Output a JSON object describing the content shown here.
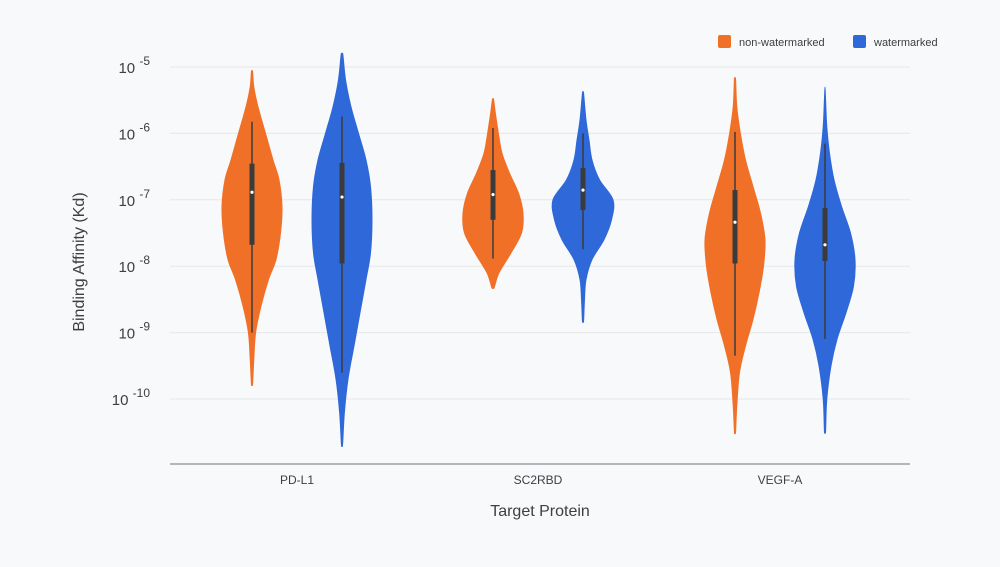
{
  "chart_data": {
    "type": "violin",
    "title": "",
    "xlabel": "Target Protein",
    "ylabel": "Binding Affinity (Kd)",
    "y_scale": "log10",
    "ylim": [
      1e-11,
      2e-05
    ],
    "y_ticks": [
      {
        "value": 1e-05,
        "base": "10",
        "exp": "-5"
      },
      {
        "value": 1e-06,
        "base": "10",
        "exp": "-6"
      },
      {
        "value": 1e-07,
        "base": "10",
        "exp": "-7"
      },
      {
        "value": 1e-08,
        "base": "10",
        "exp": "-8"
      },
      {
        "value": 1e-09,
        "base": "10",
        "exp": "-9"
      },
      {
        "value": 1e-10,
        "base": "10",
        "exp": "-10"
      }
    ],
    "categories": [
      "PD-L1",
      "SC2RBD",
      "VEGF-A"
    ],
    "grid": true,
    "legend_position": "top-right",
    "series": [
      {
        "name": "non-watermarked",
        "color": "#f07028",
        "violins": [
          {
            "min": 1.7e-10,
            "max": 8.5e-06,
            "q1": 2.1e-08,
            "median": 1.3e-07,
            "q3": 3.5e-07,
            "whisker_low": 1e-09,
            "whisker_high": 1.5e-06,
            "density": [
              [
                -9.77,
                0.02
              ],
              [
                -9.4,
                0.06
              ],
              [
                -9.0,
                0.12
              ],
              [
                -8.6,
                0.3
              ],
              [
                -8.2,
                0.55
              ],
              [
                -7.9,
                0.8
              ],
              [
                -7.5,
                0.95
              ],
              [
                -7.1,
                1.0
              ],
              [
                -6.7,
                0.9
              ],
              [
                -6.4,
                0.7
              ],
              [
                -6.0,
                0.45
              ],
              [
                -5.6,
                0.2
              ],
              [
                -5.3,
                0.06
              ],
              [
                -5.07,
                0.02
              ]
            ]
          },
          {
            "min": 4.8e-09,
            "max": 3.2e-06,
            "q1": 5e-08,
            "median": 1.2e-07,
            "q3": 2.8e-07,
            "whisker_low": 1.3e-08,
            "whisker_high": 1.2e-06,
            "density": [
              [
                -8.32,
                0.04
              ],
              [
                -8.1,
                0.2
              ],
              [
                -7.8,
                0.6
              ],
              [
                -7.5,
                0.95
              ],
              [
                -7.2,
                1.0
              ],
              [
                -6.9,
                0.85
              ],
              [
                -6.6,
                0.55
              ],
              [
                -6.3,
                0.3
              ],
              [
                -6.0,
                0.18
              ],
              [
                -5.7,
                0.08
              ],
              [
                -5.49,
                0.02
              ]
            ]
          },
          {
            "min": 3.2e-11,
            "max": 6.5e-06,
            "q1": 1.1e-08,
            "median": 4.6e-08,
            "q3": 1.4e-07,
            "whisker_low": 4.5e-10,
            "whisker_high": 1.05e-06,
            "density": [
              [
                -10.49,
                0.02
              ],
              [
                -10.1,
                0.06
              ],
              [
                -9.6,
                0.15
              ],
              [
                -9.2,
                0.35
              ],
              [
                -8.8,
                0.6
              ],
              [
                -8.4,
                0.8
              ],
              [
                -8.0,
                0.95
              ],
              [
                -7.6,
                1.0
              ],
              [
                -7.2,
                0.85
              ],
              [
                -6.8,
                0.6
              ],
              [
                -6.4,
                0.35
              ],
              [
                -6.0,
                0.18
              ],
              [
                -5.6,
                0.06
              ],
              [
                -5.19,
                0.02
              ]
            ]
          }
        ]
      },
      {
        "name": "watermarked",
        "color": "#2f68d8",
        "violins": [
          {
            "min": 2.1e-11,
            "max": 1.5e-05,
            "q1": 1.1e-08,
            "median": 1.1e-07,
            "q3": 3.6e-07,
            "whisker_low": 2.5e-10,
            "whisker_high": 1.8e-06,
            "density": [
              [
                -10.68,
                0.02
              ],
              [
                -10.2,
                0.08
              ],
              [
                -9.7,
                0.2
              ],
              [
                -9.2,
                0.4
              ],
              [
                -8.7,
                0.6
              ],
              [
                -8.2,
                0.8
              ],
              [
                -7.8,
                0.95
              ],
              [
                -7.3,
                1.0
              ],
              [
                -6.8,
                0.95
              ],
              [
                -6.4,
                0.8
              ],
              [
                -6.0,
                0.55
              ],
              [
                -5.6,
                0.3
              ],
              [
                -5.2,
                0.12
              ],
              [
                -4.82,
                0.03
              ]
            ]
          },
          {
            "min": 1.5e-09,
            "max": 4e-06,
            "q1": 7e-08,
            "median": 1.4e-07,
            "q3": 3e-07,
            "whisker_low": 1.8e-08,
            "whisker_high": 1e-06,
            "density": [
              [
                -8.82,
                0.02
              ],
              [
                -8.5,
                0.05
              ],
              [
                -8.2,
                0.1
              ],
              [
                -7.9,
                0.3
              ],
              [
                -7.6,
                0.7
              ],
              [
                -7.3,
                0.95
              ],
              [
                -7.0,
                1.0
              ],
              [
                -6.7,
                0.55
              ],
              [
                -6.4,
                0.3
              ],
              [
                -6.1,
                0.2
              ],
              [
                -5.8,
                0.1
              ],
              [
                -5.4,
                0.02
              ]
            ]
          },
          {
            "min": 3.3e-11,
            "max": 5e-06,
            "q1": 1.2e-08,
            "median": 2.1e-08,
            "q3": 7.5e-08,
            "whisker_low": 8e-10,
            "whisker_high": 7e-07,
            "density": [
              [
                -10.48,
                0.02
              ],
              [
                -10.0,
                0.06
              ],
              [
                -9.5,
                0.2
              ],
              [
                -9.1,
                0.4
              ],
              [
                -8.7,
                0.7
              ],
              [
                -8.3,
                0.95
              ],
              [
                -7.9,
                1.0
              ],
              [
                -7.5,
                0.85
              ],
              [
                -7.1,
                0.55
              ],
              [
                -6.7,
                0.3
              ],
              [
                -6.3,
                0.15
              ],
              [
                -5.9,
                0.06
              ],
              [
                -5.5,
                0.02
              ]
            ]
          }
        ]
      }
    ]
  },
  "colors": {
    "background": "#f8f9fa",
    "grid": "#e6e7ea",
    "axis": "#9aa0a6",
    "text": "#3c4043",
    "box": "#3b3b3b",
    "median": "#ffffff"
  }
}
